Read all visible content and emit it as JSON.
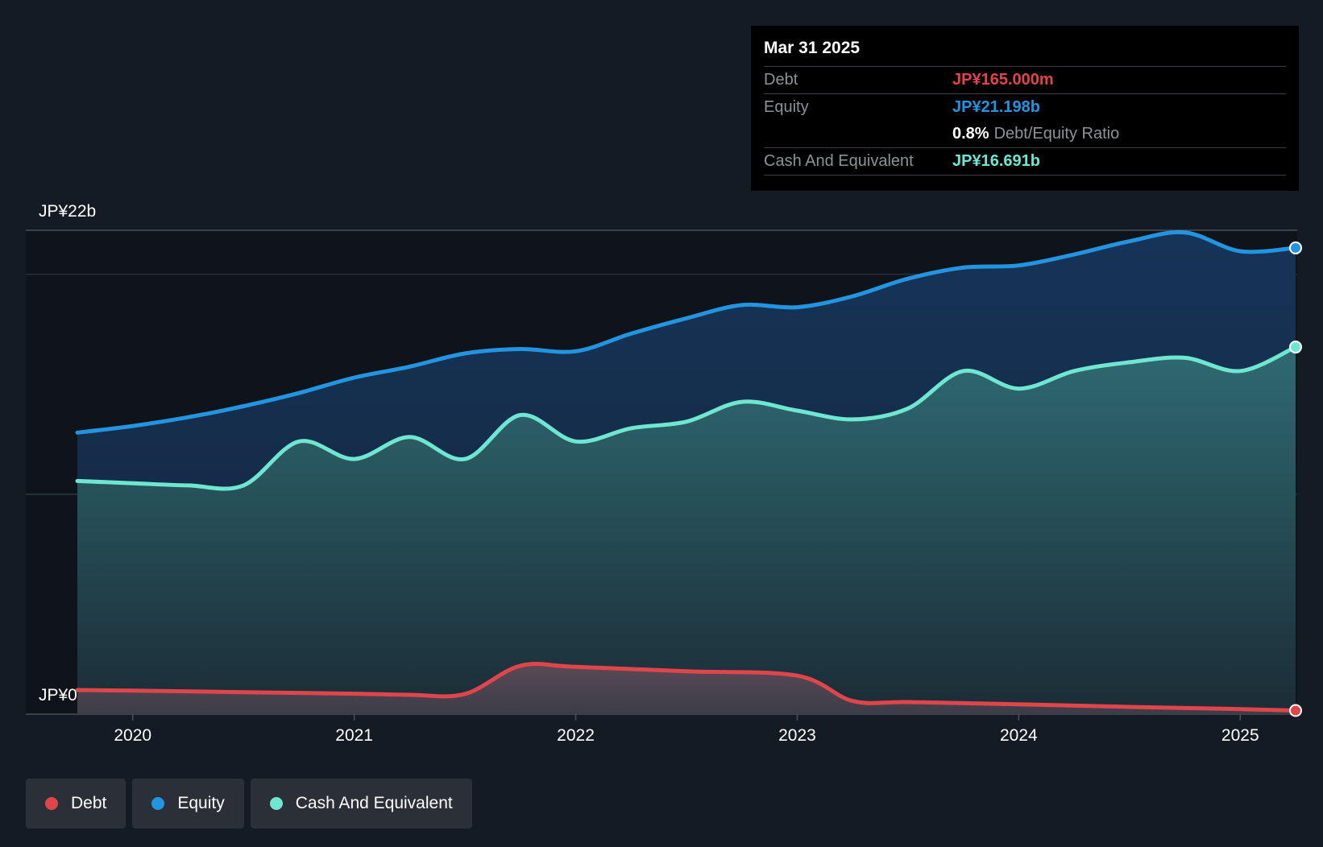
{
  "tooltip": {
    "date": "Mar 31 2025",
    "debt_label": "Debt",
    "debt_value": "JP¥165.000m",
    "equity_label": "Equity",
    "equity_value": "JP¥21.198b",
    "ratio_value": "0.8%",
    "ratio_label": "Debt/Equity Ratio",
    "cash_label": "Cash And Equivalent",
    "cash_value": "JP¥16.691b"
  },
  "legend": [
    {
      "label": "Debt",
      "color": "#e0454b"
    },
    {
      "label": "Equity",
      "color": "#2394df"
    },
    {
      "label": "Cash And Equivalent",
      "color": "#6ee6d2"
    }
  ],
  "chart_data": {
    "type": "area",
    "ylim": [
      0,
      22
    ],
    "y_unit": "JP¥b",
    "y_tick_labels": [
      "JP¥22b",
      "JP¥0"
    ],
    "x_range": [
      2019.75,
      2025.25
    ],
    "x_tick_values": [
      2020,
      2021,
      2022,
      2023,
      2024,
      2025
    ],
    "x_tick_labels": [
      "2020",
      "2021",
      "2022",
      "2023",
      "2024",
      "2025"
    ],
    "grid": true,
    "legend_position": "bottom-left",
    "series": [
      {
        "name": "Equity",
        "color": "#2394df",
        "x": [
          2019.75,
          2020.0,
          2020.25,
          2020.5,
          2020.75,
          2021.0,
          2021.25,
          2021.5,
          2021.75,
          2022.0,
          2022.25,
          2022.5,
          2022.75,
          2023.0,
          2023.25,
          2023.5,
          2023.75,
          2024.0,
          2024.25,
          2024.5,
          2024.75,
          2025.0,
          2025.25
        ],
        "values": [
          12.8,
          13.1,
          13.5,
          14.0,
          14.6,
          15.3,
          15.8,
          16.4,
          16.6,
          16.5,
          17.3,
          18.0,
          18.6,
          18.5,
          19.0,
          19.8,
          20.3,
          20.4,
          20.9,
          21.5,
          21.9,
          21.05,
          21.198
        ]
      },
      {
        "name": "Cash And Equivalent",
        "color": "#6ee6d2",
        "x": [
          2019.75,
          2020.0,
          2020.25,
          2020.5,
          2020.75,
          2021.0,
          2021.25,
          2021.5,
          2021.75,
          2022.0,
          2022.25,
          2022.5,
          2022.75,
          2023.0,
          2023.25,
          2023.5,
          2023.75,
          2024.0,
          2024.25,
          2024.5,
          2024.75,
          2025.0,
          2025.25
        ],
        "values": [
          10.6,
          10.5,
          10.4,
          10.4,
          12.4,
          11.6,
          12.6,
          11.6,
          13.6,
          12.4,
          13.0,
          13.3,
          14.2,
          13.8,
          13.4,
          13.9,
          15.6,
          14.8,
          15.6,
          16.0,
          16.2,
          15.6,
          16.691
        ]
      },
      {
        "name": "Debt",
        "color": "#e0454b",
        "x": [
          2019.75,
          2020.0,
          2020.5,
          2021.0,
          2021.25,
          2021.5,
          2021.75,
          2022.0,
          2022.5,
          2023.0,
          2023.25,
          2023.5,
          2024.0,
          2024.5,
          2025.0,
          2025.25
        ],
        "values": [
          1.1,
          1.07,
          1.0,
          0.93,
          0.88,
          0.92,
          2.2,
          2.15,
          1.95,
          1.75,
          0.6,
          0.55,
          0.45,
          0.33,
          0.23,
          0.165
        ]
      }
    ]
  }
}
